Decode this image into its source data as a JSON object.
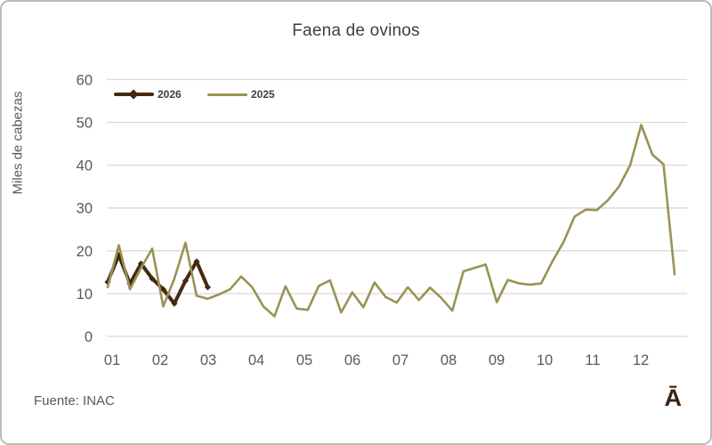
{
  "chart_data": {
    "type": "line",
    "title": "Faena de ovinos",
    "xlabel": "",
    "ylabel": "Miles de cabezas",
    "ylim": [
      0,
      60
    ],
    "yticks": [
      0,
      10,
      20,
      30,
      40,
      50,
      60
    ],
    "xticks": [
      "01",
      "02",
      "03",
      "04",
      "05",
      "06",
      "07",
      "08",
      "09",
      "10",
      "11",
      "12"
    ],
    "x_unit": "week-of-year",
    "weeks_total": 52,
    "grid": "horizontal-only",
    "gridline_color": "#d9d9d9",
    "axis_text_color": "#595959",
    "legend_position": "top-left-inside",
    "series": [
      {
        "name": "2026",
        "color": "#45290e",
        "marker": "diamond",
        "line_width": 4,
        "start_week": 1,
        "values": [
          12.7,
          19.0,
          12.3,
          17.0,
          13.5,
          11.0,
          7.7,
          13.0,
          17.5,
          11.5
        ]
      },
      {
        "name": "2025",
        "color": "#9a9355",
        "marker": "none",
        "line_width": 2.6,
        "start_week": 1,
        "values": [
          11.5,
          21.3,
          11.0,
          16.0,
          20.5,
          7.0,
          13.5,
          21.9,
          9.5,
          8.8,
          9.8,
          11.0,
          14.0,
          11.5,
          7.0,
          4.7,
          11.7,
          6.5,
          6.2,
          11.8,
          13.1,
          5.6,
          10.3,
          6.8,
          12.6,
          9.2,
          7.9,
          11.5,
          8.5,
          11.4,
          9.0,
          6.0,
          15.2,
          16.0,
          16.8,
          8.0,
          13.2,
          12.4,
          12.1,
          12.4,
          17.5,
          22.0,
          28.0,
          29.6,
          29.5,
          31.8,
          35.0,
          40.0,
          49.4,
          42.5,
          40.2,
          14.5
        ]
      }
    ]
  },
  "footer": {
    "source": "Fuente: INAC",
    "logo_glyph": "Ā",
    "logo_color": "#3b2413"
  }
}
